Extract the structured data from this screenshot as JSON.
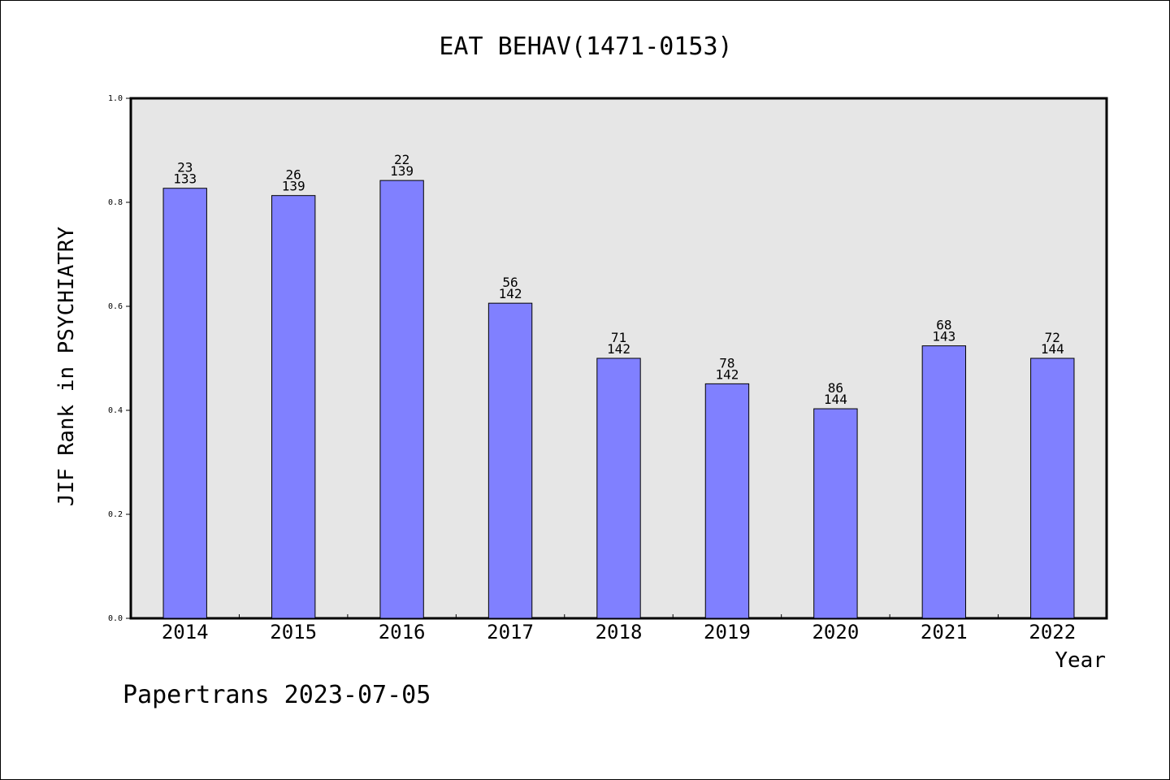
{
  "chart_data": {
    "type": "bar",
    "title": "EAT BEHAV(1471-0153)",
    "xlabel": "Year",
    "ylabel": "JIF Rank in PSYCHIATRY",
    "ylim": [
      0.0,
      1.0
    ],
    "yticks": [
      "0.0",
      "0.2",
      "0.4",
      "0.6",
      "0.8",
      "1.0"
    ],
    "categories": [
      "2014",
      "2015",
      "2016",
      "2017",
      "2018",
      "2019",
      "2020",
      "2021",
      "2022"
    ],
    "values": [
      0.827,
      0.813,
      0.842,
      0.606,
      0.5,
      0.451,
      0.403,
      0.524,
      0.5
    ],
    "ranks": [
      "23",
      "26",
      "22",
      "56",
      "71",
      "78",
      "86",
      "68",
      "72"
    ],
    "totals": [
      "133",
      "139",
      "139",
      "142",
      "142",
      "142",
      "144",
      "143",
      "144"
    ],
    "grid": false,
    "legend": "none",
    "colors": {
      "bar": "#8080ff",
      "plot_bg": "#e6e6e6",
      "axis": "#000000"
    }
  },
  "footer": "Papertrans 2023-07-05"
}
